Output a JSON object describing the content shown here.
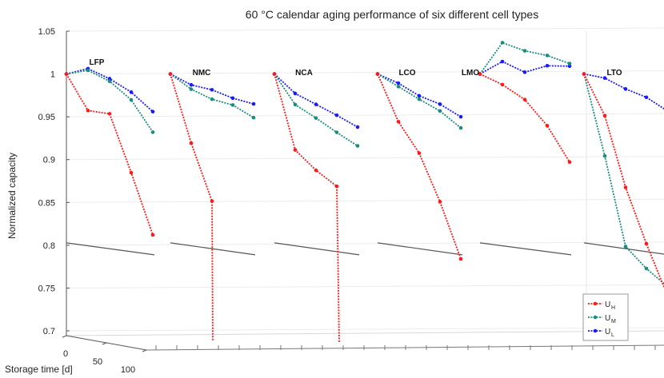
{
  "chart_data": {
    "type": "line",
    "title": "60 °C calendar aging performance of six different cell types",
    "ylabel": "Normalized capacity",
    "xlabel": "Storage time [d]",
    "ylim": [
      0.7,
      1.05
    ],
    "yticks": [
      "0.7",
      "0.75",
      "0.8",
      "0.85",
      "0.9",
      "0.95",
      "1",
      "1.05"
    ],
    "xticks": [
      "0",
      "50",
      "100"
    ],
    "threshold": 0.8,
    "grid": true,
    "legend_position": "bottom-right",
    "legend": [
      {
        "main": "U",
        "sub": "H",
        "color": "#ff1a1a"
      },
      {
        "main": "U",
        "sub": "M",
        "color": "#1a8c80"
      },
      {
        "main": "U",
        "sub": "L",
        "color": "#1a1aff"
      }
    ],
    "cells": [
      {
        "name": "LFP",
        "series": [
          {
            "name": "U_H",
            "values": [
              1.0,
              0.958,
              0.955,
              0.887,
              0.815
            ]
          },
          {
            "name": "U_M",
            "values": [
              1.0,
              1.005,
              0.993,
              0.972,
              0.935
            ]
          },
          {
            "name": "U_L",
            "values": [
              1.0,
              1.007,
              0.996,
              0.981,
              0.959
            ]
          }
        ]
      },
      {
        "name": "NMC",
        "series": [
          {
            "name": "U_H",
            "values": [
              1.0,
              0.92,
              0.853,
              0.69
            ]
          },
          {
            "name": "U_M",
            "values": [
              1.0,
              0.983,
              0.972,
              0.966,
              0.952
            ]
          },
          {
            "name": "U_L",
            "values": [
              1.0,
              0.988,
              0.983,
              0.974,
              0.968
            ]
          }
        ]
      },
      {
        "name": "NCA",
        "series": [
          {
            "name": "U_H",
            "values": [
              1.0,
              0.912,
              0.889,
              0.871,
              0.69
            ]
          },
          {
            "name": "U_M",
            "values": [
              1.0,
              0.965,
              0.95,
              0.934,
              0.919
            ]
          },
          {
            "name": "U_L",
            "values": [
              1.0,
              0.978,
              0.966,
              0.954,
              0.941
            ]
          }
        ]
      },
      {
        "name": "LCO",
        "series": [
          {
            "name": "U_H",
            "values": [
              1.0,
              0.945,
              0.909,
              0.853,
              0.787
            ]
          },
          {
            "name": "U_M",
            "values": [
              1.0,
              0.986,
              0.972,
              0.959,
              0.94
            ]
          },
          {
            "name": "U_L",
            "values": [
              1.0,
              0.99,
              0.976,
              0.967,
              0.953
            ]
          }
        ]
      },
      {
        "name": "LMO",
        "series": [
          {
            "name": "U_H",
            "values": [
              1.0,
              0.988,
              0.971,
              0.941,
              0.899
            ]
          },
          {
            "name": "U_M",
            "values": [
              1.0,
              1.037,
              1.028,
              1.023,
              1.014
            ]
          },
          {
            "name": "U_L",
            "values": [
              1.0,
              1.015,
              1.003,
              1.011,
              1.011
            ]
          }
        ]
      },
      {
        "name": "LTO",
        "series": [
          {
            "name": "U_H",
            "values": [
              1.0,
              0.952,
              0.869,
              0.804,
              0.745
            ]
          },
          {
            "name": "U_M",
            "values": [
              1.0,
              0.905,
              0.8,
              0.775,
              0.755
            ]
          },
          {
            "name": "U_L",
            "values": [
              1.0,
              0.996,
              0.984,
              0.975,
              0.96
            ]
          }
        ]
      }
    ]
  }
}
